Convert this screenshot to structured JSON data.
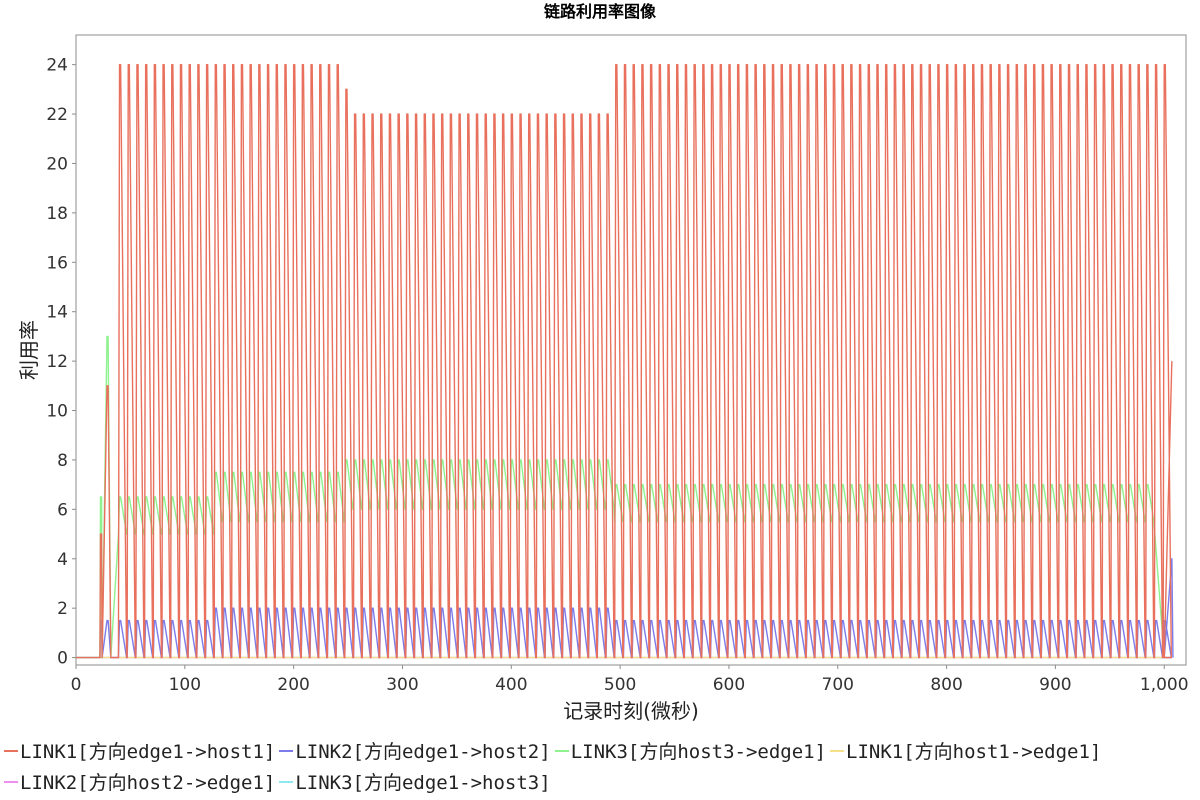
{
  "chart_data": {
    "type": "line",
    "title": "链路利用率图像",
    "xlabel": "记录时刻(微秒)",
    "ylabel": "利用率",
    "xlim": [
      0,
      1020
    ],
    "ylim": [
      -0.3,
      25.2
    ],
    "x_ticks": [
      0,
      100,
      200,
      300,
      400,
      500,
      600,
      700,
      800,
      900,
      1000
    ],
    "x_tick_labels": [
      "0",
      "100",
      "200",
      "300",
      "400",
      "500",
      "600",
      "700",
      "800",
      "900",
      "1,000"
    ],
    "y_ticks": [
      0,
      2,
      4,
      6,
      8,
      10,
      12,
      14,
      16,
      18,
      20,
      22,
      24
    ],
    "y_tick_labels": [
      "0",
      "2",
      "4",
      "6",
      "8",
      "10",
      "12",
      "14",
      "16",
      "18",
      "20",
      "22",
      "24"
    ],
    "grid": false,
    "legend_position": "bottom",
    "pulse_period": 8,
    "pulse_start": 39,
    "pulse_end": 1000,
    "series": [
      {
        "name": "LINK1[方向edge1->host1]",
        "color": "#e8705c",
        "peaks": [
          {
            "from": 22,
            "to": 28,
            "value": 5
          },
          {
            "from": 28,
            "to": 36,
            "value": 11
          },
          {
            "from": 36,
            "to": 245,
            "value": 24
          },
          {
            "from": 245,
            "to": 252,
            "value": 23
          },
          {
            "from": 252,
            "to": 495,
            "value": 22
          },
          {
            "from": 495,
            "to": 1000,
            "value": 24
          }
        ],
        "final_rise": {
          "x": [
            1000,
            1007
          ],
          "y": [
            0,
            12
          ]
        }
      },
      {
        "name": "LINK2[方向edge1->host2]",
        "color": "#7b7bea",
        "peaks": [
          {
            "from": 22,
            "to": 120,
            "value": 1.5
          },
          {
            "from": 120,
            "to": 495,
            "value": 2
          },
          {
            "from": 495,
            "to": 1000,
            "value": 1.5
          }
        ],
        "final_rise": {
          "x": [
            1000,
            1007,
            1008
          ],
          "y": [
            0,
            4,
            0
          ]
        }
      },
      {
        "name": "LINK3[方向host3->edge1]",
        "color": "#8ef28e",
        "peaks": [
          {
            "from": 22,
            "to": 28,
            "value": 6.5
          },
          {
            "from": 28,
            "to": 36,
            "value": 13
          },
          {
            "from": 36,
            "to": 120,
            "value": 6.5
          },
          {
            "from": 120,
            "to": 245,
            "value": 7.5
          },
          {
            "from": 245,
            "to": 495,
            "value": 8
          },
          {
            "from": 495,
            "to": 990,
            "value": 7
          }
        ],
        "lows": [
          {
            "from": 36,
            "to": 120,
            "value": 5
          },
          {
            "from": 120,
            "to": 245,
            "value": 5.5
          },
          {
            "from": 245,
            "to": 495,
            "value": 6
          },
          {
            "from": 495,
            "to": 990,
            "value": 5.5
          }
        ]
      },
      {
        "name": "LINK1[方向host1->edge1]",
        "color": "#f7e08a",
        "peaks": [
          {
            "from": 22,
            "to": 1000,
            "value": 0
          }
        ]
      },
      {
        "name": "LINK2[方向host2->edge1]",
        "color": "#f08ef0",
        "peaks": [
          {
            "from": 22,
            "to": 1000,
            "value": 0
          }
        ]
      },
      {
        "name": "LINK3[方向edge1->host3]",
        "color": "#8ee8f0",
        "peaks": [
          {
            "from": 22,
            "to": 1000,
            "value": 0
          }
        ]
      }
    ]
  }
}
